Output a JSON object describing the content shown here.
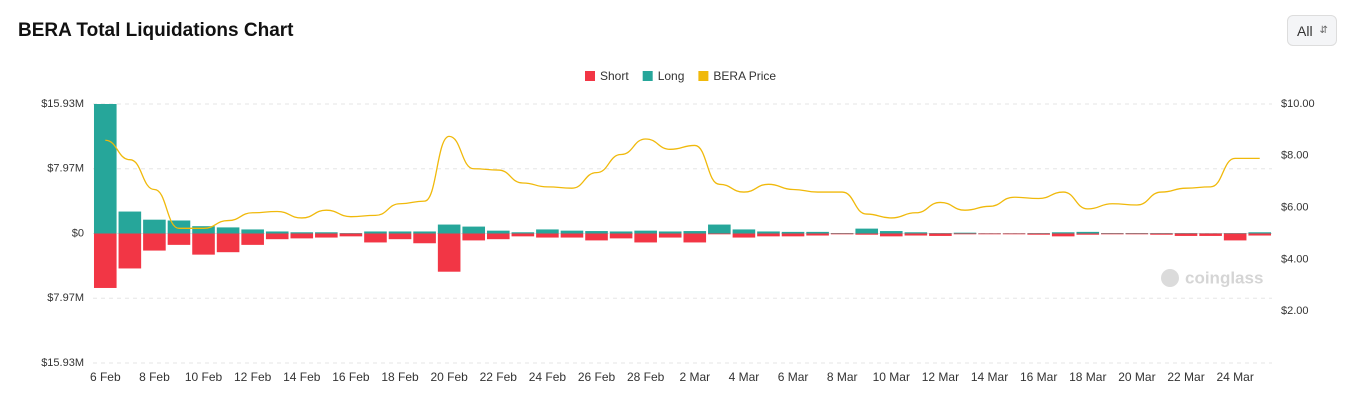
{
  "range_selector": "All",
  "watermark": "coinglass",
  "chart_data": {
    "type": "bar",
    "title": "BERA Total Liquidations Chart",
    "categories": [
      "6 Feb",
      null,
      "8 Feb",
      null,
      "10 Feb",
      null,
      "12 Feb",
      null,
      "14 Feb",
      null,
      "16 Feb",
      null,
      "18 Feb",
      null,
      "20 Feb",
      null,
      "22 Feb",
      null,
      "24 Feb",
      null,
      "26 Feb",
      null,
      "28 Feb",
      null,
      "2 Mar",
      null,
      "4 Mar",
      null,
      "6 Mar",
      null,
      "8 Mar",
      null,
      "10 Mar",
      null,
      "12 Mar",
      null,
      "14 Mar",
      null,
      "16 Mar",
      null,
      "18 Mar",
      null,
      "20 Mar",
      null,
      "22 Mar",
      null,
      "24 Mar",
      null
    ],
    "series": [
      {
        "name": "Short",
        "color": "#f23645",
        "values": [
          -6.7,
          -4.3,
          -2.1,
          -1.4,
          -2.6,
          -2.3,
          -1.4,
          -0.7,
          -0.6,
          -0.5,
          -0.35,
          -1.1,
          -0.7,
          -1.2,
          -4.7,
          -0.85,
          -0.7,
          -0.35,
          -0.5,
          -0.5,
          -0.85,
          -0.6,
          -1.1,
          -0.5,
          -1.1,
          -0.1,
          -0.5,
          -0.35,
          -0.35,
          -0.25,
          -0.1,
          -0.15,
          -0.35,
          -0.25,
          -0.3,
          -0.1,
          -0.1,
          -0.1,
          -0.15,
          -0.35,
          -0.15,
          -0.1,
          -0.1,
          -0.15,
          -0.3,
          -0.3,
          -0.85,
          -0.25
        ]
      },
      {
        "name": "Long",
        "color": "#26a69a",
        "values": [
          15.93,
          2.7,
          1.7,
          1.6,
          0.9,
          0.75,
          0.5,
          0.25,
          0.15,
          0.15,
          0.05,
          0.25,
          0.25,
          0.25,
          1.1,
          0.85,
          0.35,
          0.15,
          0.5,
          0.35,
          0.3,
          0.25,
          0.35,
          0.25,
          0.3,
          1.1,
          0.5,
          0.25,
          0.2,
          0.2,
          0.05,
          0.6,
          0.3,
          0.15,
          0.05,
          0.1,
          0.03,
          0.03,
          0.05,
          0.15,
          0.2,
          0.05,
          0.05,
          0.05,
          0.05,
          0.03,
          0.05,
          0.15
        ]
      },
      {
        "name": "BERA Price",
        "color": "#f0b90b",
        "axis": "y2",
        "values": [
          8.6,
          7.85,
          6.7,
          5.2,
          5.2,
          5.5,
          5.8,
          5.85,
          5.6,
          5.9,
          5.65,
          5.7,
          6.15,
          6.25,
          8.75,
          7.5,
          7.45,
          6.95,
          6.8,
          6.75,
          7.35,
          8.05,
          8.65,
          8.25,
          8.4,
          6.9,
          6.6,
          6.9,
          6.7,
          6.6,
          6.6,
          5.75,
          5.6,
          5.8,
          6.2,
          5.9,
          6.05,
          6.4,
          6.35,
          6.6,
          5.95,
          6.15,
          6.1,
          6.6,
          6.75,
          6.8,
          7.9,
          7.9
        ]
      }
    ],
    "ylim": [
      -15.93,
      15.93
    ],
    "yticks": [
      {
        "value": -15.93,
        "label": "$15.93M"
      },
      {
        "value": -7.97,
        "label": "$7.97M"
      },
      {
        "value": 0,
        "label": "$0"
      },
      {
        "value": 7.97,
        "label": "$7.97M"
      },
      {
        "value": 15.93,
        "label": "$15.93M"
      }
    ],
    "y2lim": [
      0,
      10
    ],
    "y2ticks": [
      {
        "value": 2,
        "label": "$2.00"
      },
      {
        "value": 4,
        "label": "$4.00"
      },
      {
        "value": 6,
        "label": "$6.00"
      },
      {
        "value": 8,
        "label": "$8.00"
      },
      {
        "value": 10,
        "label": "$10.00"
      }
    ],
    "grid": true,
    "legend": "top"
  }
}
